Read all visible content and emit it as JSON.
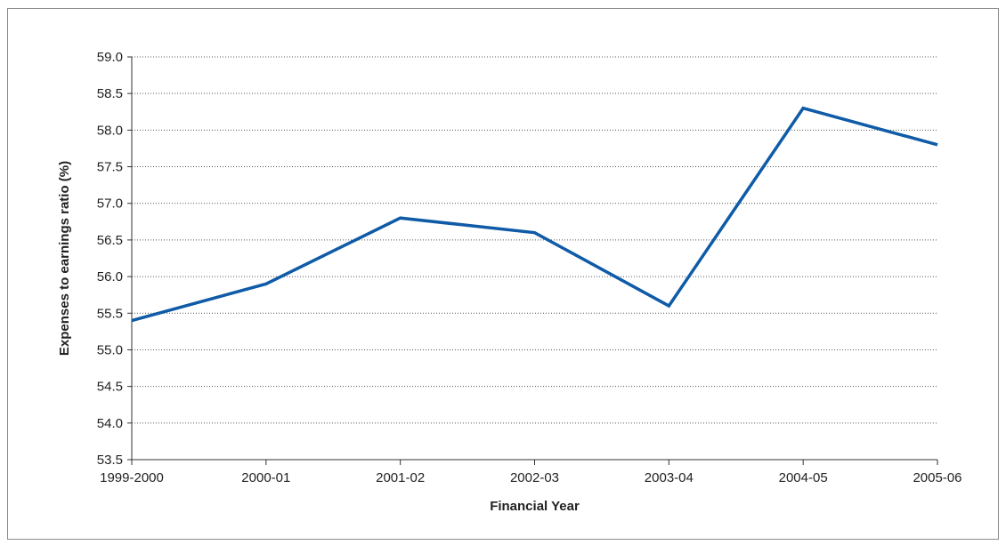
{
  "chart_data": {
    "type": "line",
    "title": "",
    "xlabel": "Financial Year",
    "ylabel": "Expenses to earnings ratio (%)",
    "categories": [
      "1999-2000",
      "2000-01",
      "2001-02",
      "2002-03",
      "2003-04",
      "2004-05",
      "2005-06"
    ],
    "series": [
      {
        "values": [
          55.4,
          55.9,
          56.8,
          56.6,
          55.6,
          58.3,
          57.8
        ],
        "color": "#0f5ba7"
      }
    ],
    "ylim": [
      53.5,
      59.0
    ],
    "yticks": [
      "53.5",
      "54.0",
      "54.5",
      "55.0",
      "55.5",
      "56.0",
      "56.5",
      "57.0",
      "57.5",
      "58.0",
      "58.5",
      "59.0"
    ],
    "grid": true,
    "grid_style": "dotted horizontal",
    "legend": "none"
  }
}
